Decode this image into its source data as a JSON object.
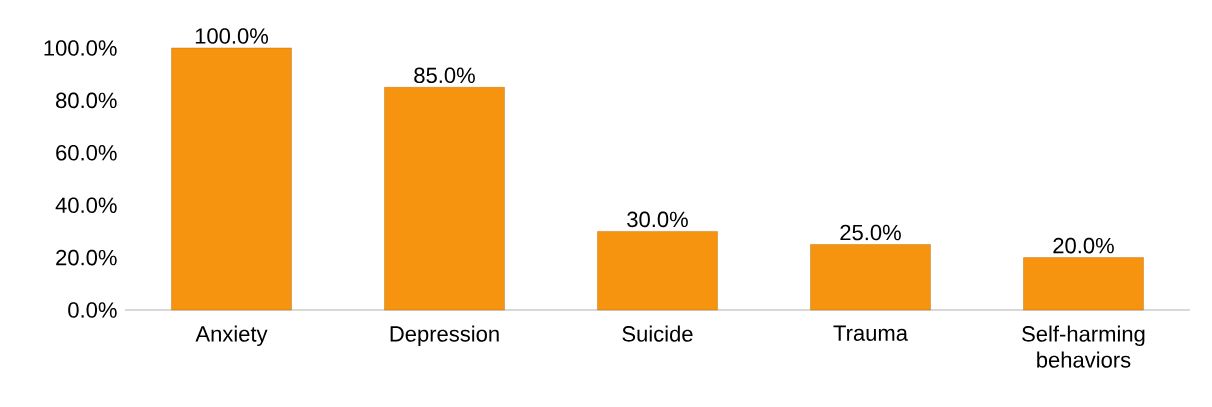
{
  "chart_data": {
    "type": "bar",
    "categories": [
      "Anxiety",
      "Depression",
      "Suicide",
      "Trauma",
      "Self-harming behaviors"
    ],
    "values": [
      100,
      85,
      30,
      25,
      20
    ],
    "value_labels": [
      "100.0%",
      "85.0%",
      "30.0%",
      "25.0%",
      "20.0%"
    ],
    "color": "#f7940f",
    "ylim": [
      0,
      100
    ],
    "yticks": [
      {
        "value": 0,
        "label": "0.0%"
      },
      {
        "value": 20,
        "label": "20.0%"
      },
      {
        "value": 40,
        "label": "40.0%"
      },
      {
        "value": 60,
        "label": "60.0%"
      },
      {
        "value": 80,
        "label": "80.0%"
      },
      {
        "value": 100,
        "label": "100.0%"
      }
    ],
    "grid": false
  }
}
